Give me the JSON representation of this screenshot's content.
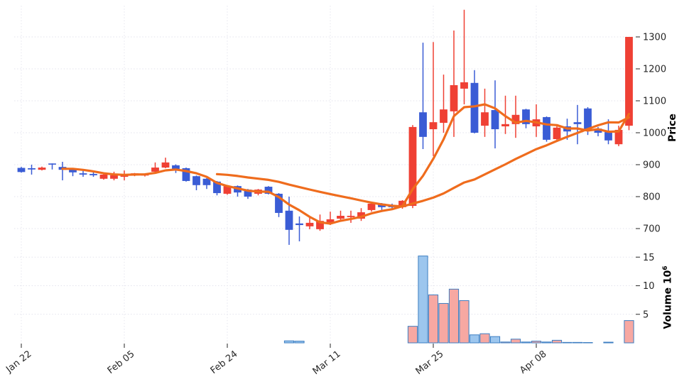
{
  "figure": {
    "background": "#ffffff",
    "price_axis_label": "Price",
    "volume_axis_label": "Volume",
    "volume_scale_base": "10",
    "volume_scale_exp": "6"
  },
  "chart_data": {
    "type": "candlestick",
    "title": "",
    "xlabel": "",
    "ylabel_price": "Price",
    "ylabel_volume": "Volume 10^6",
    "grid": true,
    "legend": false,
    "price_axis_side": "right",
    "price_ticks": [
      700,
      800,
      900,
      1000,
      1100,
      1200,
      1300
    ],
    "price_ylim": [
      640,
      1400
    ],
    "volume_ticks_millions": [
      5,
      10,
      15
    ],
    "volume_unit": "millions",
    "x_ticks": [
      {
        "index": 0,
        "label": "Jan 22"
      },
      {
        "index": 10,
        "label": "Feb 05"
      },
      {
        "index": 20,
        "label": "Feb 24"
      },
      {
        "index": 30,
        "label": "Mar 11"
      },
      {
        "index": 40,
        "label": "Mar 25"
      },
      {
        "index": 50,
        "label": "Apr 08"
      }
    ],
    "overlays": [
      {
        "type": "sma",
        "period": 5,
        "color": "#ef6c1d"
      },
      {
        "type": "sma",
        "period": 20,
        "color": "#ef6c1d"
      }
    ],
    "colors": {
      "up_candle": "#ef4034",
      "down_candle": "#3a5cd5",
      "ma_line": "#ef6c1d",
      "volume_up_fill": "#f7a8a2",
      "volume_down_fill": "#9cc6ee",
      "volume_edge": "#3d7ec2",
      "grid": "#e3e3ed",
      "tick_text": "#262626",
      "tick_mark": "#3a3a3a"
    },
    "candles_ohlcv": [
      [
        890,
        893,
        875,
        877,
        0
      ],
      [
        889,
        900,
        869,
        885,
        0
      ],
      [
        884,
        894,
        882,
        891,
        0
      ],
      [
        902,
        904,
        885,
        899,
        0
      ],
      [
        893,
        909,
        851,
        884,
        0
      ],
      [
        887,
        889,
        864,
        876,
        0
      ],
      [
        873,
        884,
        862,
        869,
        0
      ],
      [
        871,
        880,
        862,
        867,
        0
      ],
      [
        856,
        871,
        853,
        869,
        0
      ],
      [
        856,
        878,
        851,
        867,
        0
      ],
      [
        862,
        882,
        851,
        869,
        0
      ],
      [
        867,
        874,
        864,
        873,
        0
      ],
      [
        866,
        872,
        863,
        871,
        0
      ],
      [
        878,
        907,
        876,
        891,
        0
      ],
      [
        891,
        922,
        889,
        907,
        0
      ],
      [
        898,
        901,
        874,
        882,
        0
      ],
      [
        889,
        891,
        847,
        849,
        0
      ],
      [
        864,
        866,
        820,
        836,
        0
      ],
      [
        856,
        858,
        824,
        836,
        0
      ],
      [
        847,
        849,
        804,
        811,
        0
      ],
      [
        809,
        835,
        806,
        833,
        0
      ],
      [
        833,
        835,
        800,
        813,
        0
      ],
      [
        822,
        824,
        793,
        800,
        0
      ],
      [
        809,
        824,
        804,
        822,
        0
      ],
      [
        831,
        833,
        807,
        809,
        0
      ],
      [
        809,
        811,
        736,
        749,
        0
      ],
      [
        756,
        800,
        649,
        696,
        0.35
      ],
      [
        716,
        738,
        660,
        711,
        0.3
      ],
      [
        707,
        736,
        698,
        718,
        0
      ],
      [
        698,
        744,
        693,
        724,
        0
      ],
      [
        718,
        753,
        711,
        729,
        0
      ],
      [
        731,
        756,
        722,
        740,
        0
      ],
      [
        736,
        756,
        718,
        740,
        0
      ],
      [
        731,
        764,
        724,
        751,
        0
      ],
      [
        758,
        782,
        753,
        778,
        0
      ],
      [
        778,
        780,
        758,
        767,
        0
      ],
      [
        771,
        778,
        760,
        767,
        0
      ],
      [
        767,
        789,
        762,
        787,
        0
      ],
      [
        771,
        1024,
        764,
        1018,
        2.9
      ],
      [
        1064,
        1282,
        949,
        987,
        15.2
      ],
      [
        1011,
        1284,
        927,
        1033,
        8.4
      ],
      [
        1031,
        1182,
        1000,
        1073,
        6.9
      ],
      [
        1067,
        1320,
        987,
        1149,
        9.4
      ],
      [
        1138,
        1385,
        1089,
        1158,
        7.4
      ],
      [
        1156,
        1196,
        998,
        1000,
        1.4
      ],
      [
        1022,
        1138,
        987,
        1064,
        1.6
      ],
      [
        1071,
        1164,
        951,
        1011,
        1.1
      ],
      [
        1020,
        1116,
        996,
        1027,
        0.15
      ],
      [
        1027,
        1116,
        984,
        1056,
        0.65
      ],
      [
        1073,
        1075,
        1014,
        1027,
        0.15
      ],
      [
        1020,
        1089,
        987,
        1042,
        0.3
      ],
      [
        1049,
        1051,
        972,
        978,
        0.15
      ],
      [
        980,
        1022,
        971,
        1016,
        0.45
      ],
      [
        1020,
        1044,
        978,
        1004,
        0.08
      ],
      [
        1033,
        1087,
        964,
        1027,
        0.08
      ],
      [
        1076,
        1080,
        993,
        1009,
        0.06
      ],
      [
        1013,
        1018,
        989,
        1000,
        0
      ],
      [
        1002,
        1042,
        964,
        976,
        0.12
      ],
      [
        964,
        1022,
        958,
        1009,
        0
      ],
      [
        1022,
        1300,
        1008,
        1300,
        3.9
      ]
    ]
  }
}
